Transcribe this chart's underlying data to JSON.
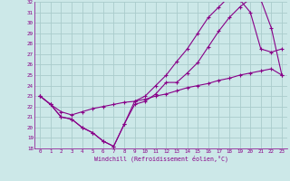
{
  "xlabel": "Windchill (Refroidissement éolien,°C)",
  "xlim": [
    -0.5,
    23.5
  ],
  "ylim": [
    18,
    32
  ],
  "xticks": [
    0,
    1,
    2,
    3,
    4,
    5,
    6,
    7,
    8,
    9,
    10,
    11,
    12,
    13,
    14,
    15,
    16,
    17,
    18,
    19,
    20,
    21,
    22,
    23
  ],
  "yticks": [
    18,
    19,
    20,
    21,
    22,
    23,
    24,
    25,
    26,
    27,
    28,
    29,
    30,
    31,
    32
  ],
  "bg_color": "#cce8e8",
  "line_color": "#880088",
  "grid_color": "#aacccc",
  "line1_x": [
    0,
    1,
    2,
    3,
    4,
    5,
    6,
    7,
    8,
    9,
    10,
    11,
    12,
    13,
    14,
    15,
    16,
    17,
    18,
    19,
    20,
    21,
    22,
    23
  ],
  "line1_y": [
    23.0,
    22.2,
    21.0,
    20.8,
    20.0,
    19.5,
    18.7,
    18.2,
    20.3,
    22.2,
    22.5,
    23.2,
    24.3,
    24.3,
    25.2,
    26.2,
    27.7,
    29.2,
    30.5,
    31.5,
    32.3,
    32.2,
    29.5,
    25.0
  ],
  "line2_x": [
    0,
    1,
    2,
    3,
    4,
    5,
    6,
    7,
    8,
    9,
    10,
    11,
    12,
    13,
    14,
    15,
    16,
    17,
    18,
    19,
    20,
    21,
    22,
    23
  ],
  "line2_y": [
    23.0,
    22.2,
    21.0,
    20.8,
    20.0,
    19.5,
    18.7,
    18.2,
    20.3,
    22.5,
    23.0,
    24.0,
    25.0,
    26.3,
    27.5,
    29.0,
    30.5,
    31.5,
    32.5,
    32.2,
    31.0,
    27.5,
    27.2,
    27.5
  ],
  "line3_x": [
    0,
    1,
    2,
    3,
    4,
    5,
    6,
    7,
    8,
    9,
    10,
    11,
    12,
    13,
    14,
    15,
    16,
    17,
    18,
    19,
    20,
    21,
    22,
    23
  ],
  "line3_y": [
    23.0,
    22.2,
    21.5,
    21.2,
    21.5,
    21.8,
    22.0,
    22.2,
    22.4,
    22.5,
    22.7,
    23.0,
    23.2,
    23.5,
    23.8,
    24.0,
    24.2,
    24.5,
    24.7,
    25.0,
    25.2,
    25.4,
    25.6,
    25.0
  ]
}
